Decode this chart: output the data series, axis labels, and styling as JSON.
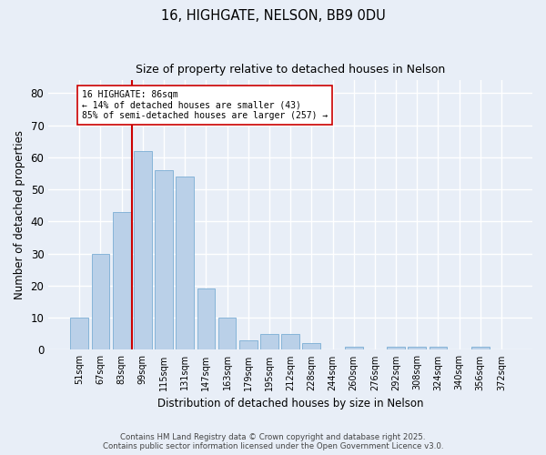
{
  "title1": "16, HIGHGATE, NELSON, BB9 0DU",
  "title2": "Size of property relative to detached houses in Nelson",
  "xlabel": "Distribution of detached houses by size in Nelson",
  "ylabel": "Number of detached properties",
  "categories": [
    "51sqm",
    "67sqm",
    "83sqm",
    "99sqm",
    "115sqm",
    "131sqm",
    "147sqm",
    "163sqm",
    "179sqm",
    "195sqm",
    "212sqm",
    "228sqm",
    "244sqm",
    "260sqm",
    "276sqm",
    "292sqm",
    "308sqm",
    "324sqm",
    "340sqm",
    "356sqm",
    "372sqm"
  ],
  "values": [
    10,
    30,
    43,
    62,
    56,
    54,
    19,
    10,
    3,
    5,
    5,
    2,
    0,
    1,
    0,
    1,
    1,
    1,
    0,
    1,
    0
  ],
  "bar_color": "#bad0e8",
  "bar_edge_color": "#7aadd4",
  "vline_color": "#cc0000",
  "annotation_text": "16 HIGHGATE: 86sqm\n← 14% of detached houses are smaller (43)\n85% of semi-detached houses are larger (257) →",
  "annotation_box_color": "#ffffff",
  "annotation_box_edge": "#cc0000",
  "ylim": [
    0,
    84
  ],
  "yticks": [
    0,
    10,
    20,
    30,
    40,
    50,
    60,
    70,
    80
  ],
  "background_color": "#e8eef7",
  "grid_color": "#ffffff",
  "footer1": "Contains HM Land Registry data © Crown copyright and database right 2025.",
  "footer2": "Contains public sector information licensed under the Open Government Licence v3.0."
}
